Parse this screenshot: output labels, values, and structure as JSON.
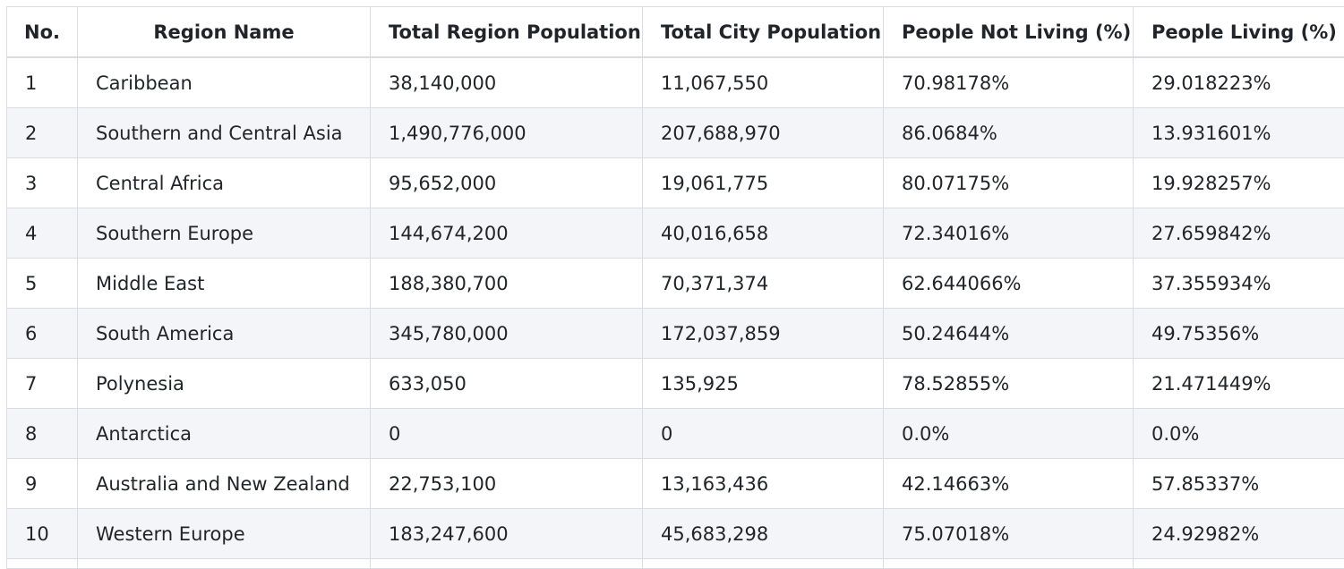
{
  "table": {
    "headers": [
      "No.",
      "Region Name",
      "Total Region Population",
      "Total City Population",
      "People Not Living (%)",
      "People Living (%)"
    ],
    "rows": [
      [
        "1",
        "Caribbean",
        "38,140,000",
        "11,067,550",
        "70.98178%",
        "29.018223%"
      ],
      [
        "2",
        "Southern and Central Asia",
        "1,490,776,000",
        "207,688,970",
        "86.0684%",
        "13.931601%"
      ],
      [
        "3",
        "Central Africa",
        "95,652,000",
        "19,061,775",
        "80.07175%",
        "19.928257%"
      ],
      [
        "4",
        "Southern Europe",
        "144,674,200",
        "40,016,658",
        "72.34016%",
        "27.659842%"
      ],
      [
        "5",
        "Middle East",
        "188,380,700",
        "70,371,374",
        "62.644066%",
        "37.355934%"
      ],
      [
        "6",
        "South America",
        "345,780,000",
        "172,037,859",
        "50.24644%",
        "49.75356%"
      ],
      [
        "7",
        "Polynesia",
        "633,050",
        "135,925",
        "78.52855%",
        "21.471449%"
      ],
      [
        "8",
        "Antarctica",
        "0",
        "0",
        "0.0%",
        "0.0%"
      ],
      [
        "9",
        "Australia and New Zealand",
        "22,753,100",
        "13,163,436",
        "42.14663%",
        "57.85337%"
      ],
      [
        "10",
        "Western Europe",
        "183,247,600",
        "45,683,298",
        "75.07018%",
        "24.92982%"
      ]
    ]
  }
}
